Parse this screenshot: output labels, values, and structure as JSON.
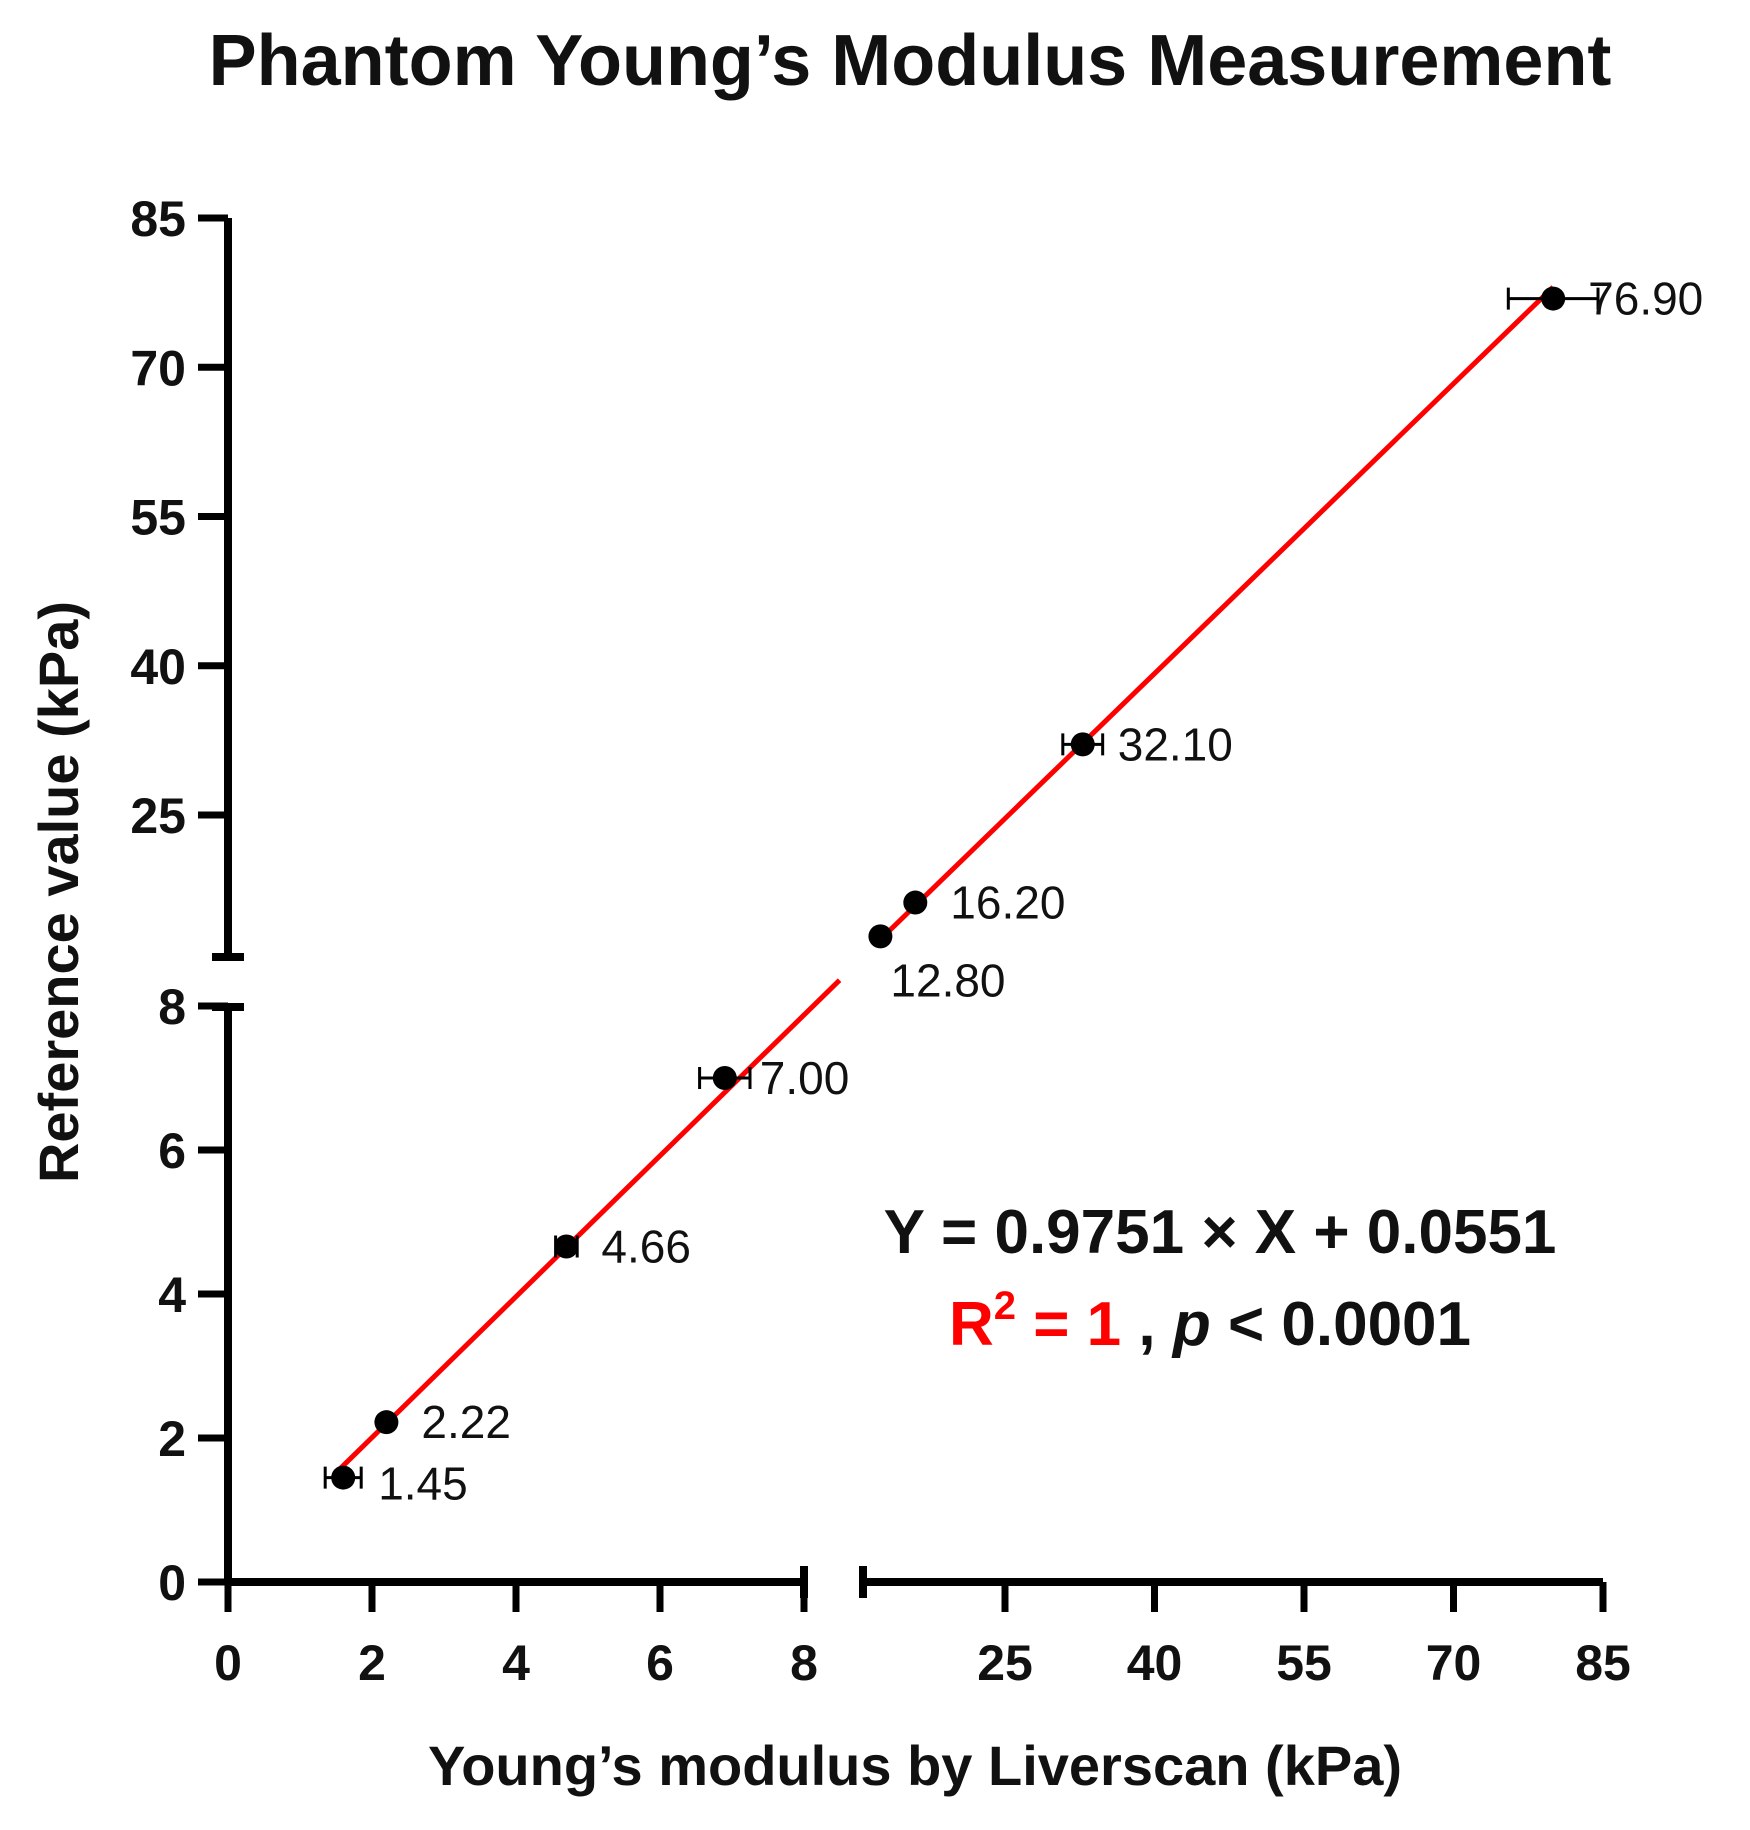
{
  "chart_data": {
    "type": "scatter",
    "title": "Phantom Young’s Modulus Measurement",
    "xlabel": "Young’s modulus by Liverscan (kPa)",
    "ylabel": "Reference value (kPa)",
    "axis_break": {
      "lower_segment": [
        0,
        8
      ],
      "upper_segment": [
        10,
        85
      ]
    },
    "xticks": [
      "0",
      "2",
      "4",
      "6",
      "8",
      "25",
      "40",
      "55",
      "70",
      "85"
    ],
    "yticks": [
      "0",
      "2",
      "4",
      "6",
      "8",
      "25",
      "40",
      "55",
      "70",
      "85"
    ],
    "points": [
      {
        "x": 1.6,
        "y": 1.45,
        "xerr": 0.25,
        "label": "1.45"
      },
      {
        "x": 2.2,
        "y": 2.22,
        "xerr": 0.0,
        "label": "2.22"
      },
      {
        "x": 4.7,
        "y": 4.66,
        "xerr": 0.15,
        "label": "4.66"
      },
      {
        "x": 6.9,
        "y": 7.0,
        "xerr": 0.35,
        "label": "7.00"
      },
      {
        "x": 12.5,
        "y": 12.8,
        "xerr": 0.0,
        "label": "12.80"
      },
      {
        "x": 16.0,
        "y": 16.2,
        "xerr": 0.0,
        "label": "16.20"
      },
      {
        "x": 32.8,
        "y": 32.1,
        "xerr": 2.0,
        "label": "32.10"
      },
      {
        "x": 80.0,
        "y": 76.9,
        "xerr": 4.5,
        "label": "76.90"
      }
    ],
    "fit": {
      "slope": 0.9751,
      "intercept": 0.0551,
      "x_range": [
        1.5,
        80.0
      ],
      "color": "#ff0000"
    },
    "annotations": {
      "equation": "Y = 0.9751 × X + 0.0551",
      "r2_label": "R",
      "r2_sup": "2",
      "r2_value": " = 1",
      "separator": " , ",
      "p_symbol": "p",
      "p_value": " < 0.0001",
      "r2_color": "#ff0000"
    }
  }
}
